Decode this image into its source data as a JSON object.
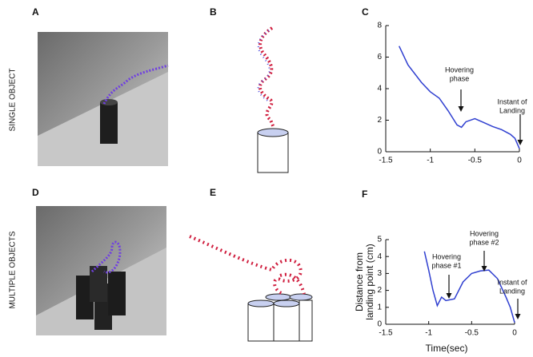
{
  "figure": {
    "panel_labels": [
      "A",
      "B",
      "C",
      "D",
      "E",
      "F"
    ],
    "row_labels": [
      "SINGLE OBJECT",
      "MULTIPLE OBJECTS"
    ]
  },
  "chart_data": [
    {
      "type": "line",
      "x": [
        -1.35,
        -1.25,
        -1.1,
        -1.0,
        -0.9,
        -0.8,
        -0.7,
        -0.65,
        -0.6,
        -0.5,
        -0.4,
        -0.3,
        -0.2,
        -0.1,
        -0.05,
        0
      ],
      "series": [
        {
          "color": "#2f3fd0",
          "values": [
            6.7,
            5.5,
            4.4,
            3.8,
            3.4,
            2.6,
            1.7,
            1.55,
            1.9,
            2.1,
            1.85,
            1.6,
            1.4,
            1.1,
            0.85,
            0.2
          ]
        }
      ],
      "xlim": [
        -1.5,
        0
      ],
      "xticks": [
        -1.5,
        -1,
        -0.5,
        0
      ],
      "ylim": [
        0,
        8
      ],
      "yticks": [
        0,
        2,
        4,
        6,
        8
      ],
      "annotations": [
        [
          "Hovering",
          "phase"
        ],
        [
          "Instant of",
          "Landing"
        ]
      ]
    },
    {
      "type": "line",
      "x": [
        -1.05,
        -1.0,
        -0.95,
        -0.9,
        -0.85,
        -0.8,
        -0.7,
        -0.6,
        -0.5,
        -0.4,
        -0.3,
        -0.2,
        -0.1,
        -0.05,
        0
      ],
      "series": [
        {
          "color": "#2f3fd0",
          "values": [
            4.3,
            3.2,
            2.0,
            1.1,
            1.6,
            1.4,
            1.5,
            2.5,
            3.0,
            3.15,
            3.2,
            2.7,
            1.6,
            1.0,
            0.1
          ]
        }
      ],
      "xlim": [
        -1.5,
        0
      ],
      "xticks": [
        -1.5,
        -1,
        -0.5,
        0
      ],
      "ylim": [
        0,
        5
      ],
      "yticks": [
        0,
        1,
        2,
        3,
        4,
        5
      ],
      "xlabel": "Time(sec)",
      "ylabel": [
        "Distance from",
        "landing point (cm)"
      ],
      "annotations": [
        [
          "Hovering",
          "phase #1"
        ],
        [
          "Hovering",
          "phase #2"
        ],
        [
          "Instant of",
          "Landing"
        ]
      ]
    }
  ]
}
